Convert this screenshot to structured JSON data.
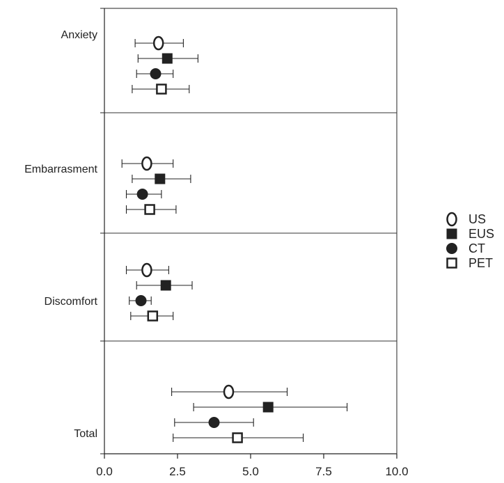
{
  "chart_data": {
    "type": "forest",
    "xlim": [
      0,
      10
    ],
    "x_ticks": [
      "0.0",
      "2.5",
      "5.0",
      "7.5",
      "10.0"
    ],
    "x_tick_values": [
      0,
      2.5,
      5,
      7.5,
      10
    ],
    "xlabel": "",
    "ylabel": "",
    "legend_position": "right",
    "categories": [
      "Anxiety",
      "Embarrasment",
      "Discomfort",
      "Total"
    ],
    "series": [
      {
        "name": "US",
        "marker": "open-ellipse",
        "mean": [
          1.85,
          1.45,
          1.45,
          4.25
        ],
        "low": [
          1.05,
          0.6,
          0.75,
          2.3
        ],
        "high": [
          2.7,
          2.35,
          2.2,
          6.25
        ]
      },
      {
        "name": "EUS",
        "marker": "filled-square",
        "mean": [
          2.15,
          1.9,
          2.1,
          5.6
        ],
        "low": [
          1.15,
          0.95,
          1.1,
          3.05
        ],
        "high": [
          3.2,
          2.95,
          3.0,
          8.3
        ]
      },
      {
        "name": "CT",
        "marker": "filled-circle",
        "mean": [
          1.75,
          1.3,
          1.25,
          3.75
        ],
        "low": [
          1.1,
          0.75,
          0.85,
          2.4
        ],
        "high": [
          2.35,
          1.95,
          1.6,
          5.1
        ]
      },
      {
        "name": "PET",
        "marker": "open-square",
        "mean": [
          1.95,
          1.55,
          1.65,
          4.55
        ],
        "low": [
          0.95,
          0.75,
          0.9,
          2.35
        ],
        "high": [
          2.9,
          2.45,
          2.35,
          6.8
        ]
      }
    ]
  }
}
